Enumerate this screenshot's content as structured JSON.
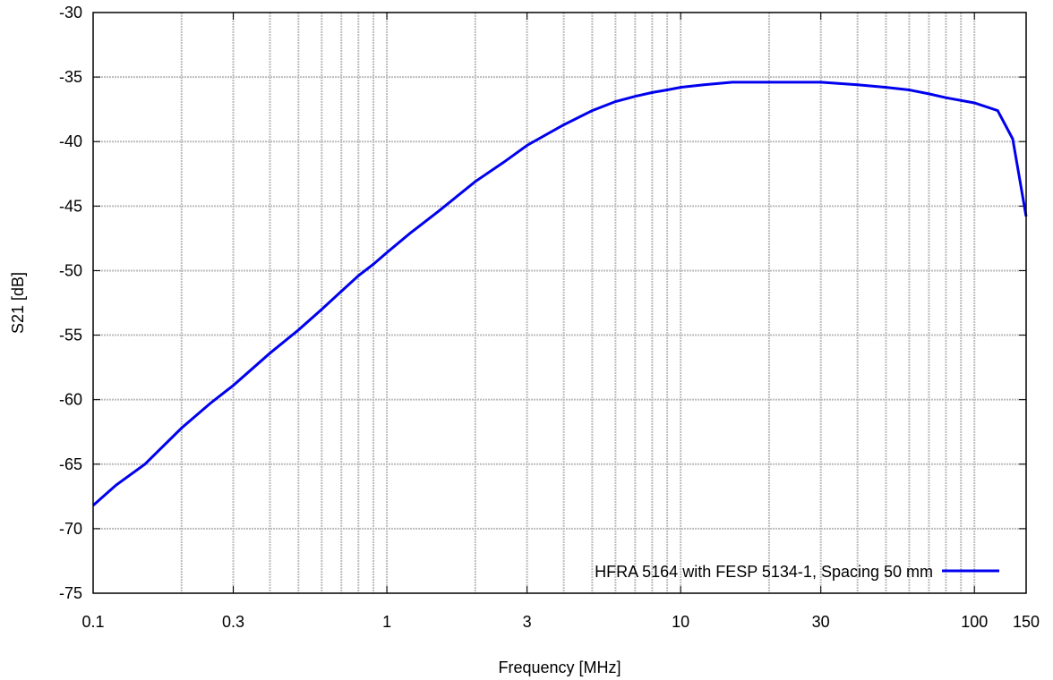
{
  "chart_data": {
    "type": "line",
    "xscale": "log",
    "xlabel": "Frequency [MHz]",
    "ylabel": "S21 [dB]",
    "xlim": [
      0.1,
      150
    ],
    "ylim": [
      -75,
      -30
    ],
    "grid": true,
    "legend_position": "bottom-right",
    "x_ticks": [
      {
        "value": 0.1,
        "label": "0.1"
      },
      {
        "value": 0.3,
        "label": "0.3"
      },
      {
        "value": 1,
        "label": "1"
      },
      {
        "value": 3,
        "label": "3"
      },
      {
        "value": 10,
        "label": "10"
      },
      {
        "value": 30,
        "label": "30"
      },
      {
        "value": 100,
        "label": "100"
      },
      {
        "value": 150,
        "label": "150"
      }
    ],
    "y_ticks": [
      {
        "value": -30,
        "label": "-30"
      },
      {
        "value": -35,
        "label": "-35"
      },
      {
        "value": -40,
        "label": "-40"
      },
      {
        "value": -45,
        "label": "-45"
      },
      {
        "value": -50,
        "label": "-50"
      },
      {
        "value": -55,
        "label": "-55"
      },
      {
        "value": -60,
        "label": "-60"
      },
      {
        "value": -65,
        "label": "-65"
      },
      {
        "value": -70,
        "label": "-70"
      },
      {
        "value": -75,
        "label": "-75"
      }
    ],
    "series": [
      {
        "name": "HFRA 5164 with FESP 5134-1, Spacing 50 mm",
        "color": "#0000ee",
        "x": [
          0.1,
          0.12,
          0.15,
          0.2,
          0.25,
          0.3,
          0.4,
          0.5,
          0.6,
          0.7,
          0.8,
          0.9,
          1,
          1.2,
          1.5,
          2,
          2.5,
          3,
          4,
          5,
          6,
          7,
          8,
          9,
          10,
          12,
          15,
          20,
          30,
          40,
          50,
          60,
          70,
          80,
          100,
          120,
          135,
          150
        ],
        "values": [
          -68.2,
          -66.6,
          -65.0,
          -62.2,
          -60.3,
          -58.9,
          -56.4,
          -54.6,
          -53.0,
          -51.6,
          -50.4,
          -49.5,
          -48.6,
          -47.1,
          -45.4,
          -43.1,
          -41.6,
          -40.3,
          -38.7,
          -37.6,
          -36.9,
          -36.5,
          -36.2,
          -36.0,
          -35.8,
          -35.6,
          -35.4,
          -35.4,
          -35.4,
          -35.6,
          -35.8,
          -36.0,
          -36.3,
          -36.6,
          -37.0,
          -37.6,
          -39.8,
          -45.8
        ]
      }
    ]
  }
}
